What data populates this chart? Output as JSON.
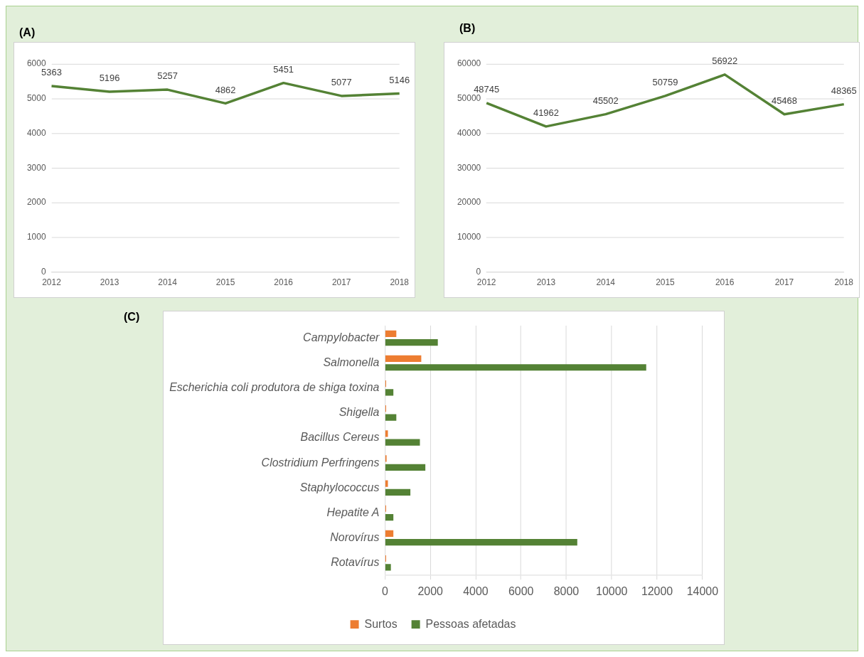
{
  "chart_data": [
    {
      "type": "line",
      "title": "(A)",
      "categories": [
        "2012",
        "2013",
        "2014",
        "2015",
        "2016",
        "2017",
        "2018"
      ],
      "series": [
        {
          "color": "#548235",
          "values": [
            5363,
            5196,
            5257,
            4862,
            5451,
            5077,
            5146
          ]
        }
      ],
      "ylim": [
        0,
        6000
      ],
      "yticks": [
        0,
        1000,
        2000,
        3000,
        4000,
        5000,
        6000
      ],
      "grid": "y",
      "data_labels": true,
      "legend": false
    },
    {
      "type": "line",
      "title": "(B)",
      "categories": [
        "2012",
        "2013",
        "2014",
        "2015",
        "2016",
        "2017",
        "2018"
      ],
      "series": [
        {
          "color": "#548235",
          "values": [
            48745,
            41962,
            45502,
            50759,
            56922,
            45468,
            48365
          ]
        }
      ],
      "ylim": [
        0,
        60000
      ],
      "yticks": [
        0,
        10000,
        20000,
        30000,
        40000,
        50000,
        60000
      ],
      "grid": "y",
      "data_labels": true,
      "legend": false
    },
    {
      "type": "bar",
      "title": "(C)",
      "orientation": "horizontal",
      "categories": [
        "Campylobacter",
        "Salmonella",
        "Escherichia coli produtora de shiga toxina",
        "Shigella",
        "Bacillus Cereus",
        "Clostridium Perfringens",
        "Staphylococcus",
        "Hepatite A",
        "Norovírus",
        "Rotavírus"
      ],
      "series": [
        {
          "name": "Surtos",
          "color": "#ed7d31",
          "values": [
            500,
            1600,
            50,
            50,
            130,
            70,
            130,
            50,
            370,
            50
          ]
        },
        {
          "name": "Pessoas afetadas",
          "color": "#548235",
          "values": [
            2330,
            11520,
            370,
            500,
            1540,
            1780,
            1120,
            370,
            8480,
            260
          ]
        }
      ],
      "xlim": [
        0,
        14000
      ],
      "xticks": [
        0,
        2000,
        4000,
        6000,
        8000,
        10000,
        12000,
        14000
      ],
      "grid": "x",
      "legend": "bottom"
    }
  ]
}
